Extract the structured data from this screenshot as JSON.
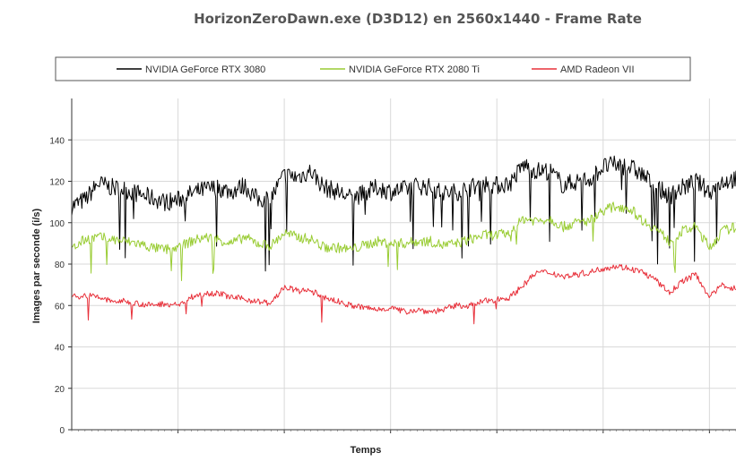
{
  "chart_data": {
    "type": "line",
    "title": "HorizonZeroDawn.exe (D3D12) en 2560x1440 - Frame Rate",
    "xlabel": "Temps",
    "ylabel": "Images par seconde (i/s)",
    "ylim": [
      0,
      160
    ],
    "yticks": [
      0,
      20,
      40,
      60,
      80,
      100,
      120,
      140
    ],
    "xlim": [
      0,
      100
    ],
    "grid": true,
    "legend_position": "top",
    "x": [
      0,
      2,
      4,
      6,
      8,
      10,
      12,
      14,
      16,
      18,
      20,
      22,
      24,
      26,
      28,
      30,
      32,
      34,
      36,
      38,
      40,
      42,
      44,
      46,
      48,
      50,
      52,
      54,
      56,
      58,
      60,
      62,
      64,
      66,
      68,
      70,
      72,
      74,
      76,
      78,
      80,
      82,
      84,
      86,
      88,
      90,
      92,
      94,
      96,
      98,
      100
    ],
    "series": [
      {
        "name": "NVIDIA GeForce RTX 3080",
        "color": "#000000",
        "values": [
          108,
          111,
          119,
          117,
          116,
          114,
          112,
          110,
          111,
          114,
          116,
          117,
          115,
          118,
          111,
          112,
          123,
          122,
          125,
          117,
          115,
          112,
          114,
          117,
          115,
          116,
          118,
          117,
          114,
          115,
          117,
          119,
          118,
          119,
          128,
          125,
          125,
          118,
          120,
          121,
          127,
          128,
          127,
          123,
          117,
          113,
          117,
          120,
          115,
          120,
          121
        ]
      },
      {
        "name": "NVIDIA GeForce RTX 2080 Ti",
        "color": "#99cc33",
        "values": [
          87,
          92,
          93,
          92,
          91,
          90,
          88,
          87,
          88,
          91,
          93,
          92,
          90,
          93,
          90,
          89,
          95,
          93,
          92,
          88,
          88,
          87,
          89,
          91,
          90,
          90,
          91,
          91,
          89,
          90,
          92,
          94,
          94,
          95,
          102,
          101,
          102,
          98,
          100,
          101,
          106,
          108,
          107,
          101,
          97,
          91,
          96,
          98,
          88,
          96,
          98
        ]
      },
      {
        "name": "AMD Radeon VII",
        "color": "#e8303a",
        "values": [
          64,
          65,
          64,
          62,
          62,
          61,
          60,
          61,
          60,
          64,
          66,
          66,
          64,
          63,
          62,
          61,
          69,
          67,
          67,
          64,
          62,
          60,
          59,
          58,
          59,
          57,
          58,
          57,
          58,
          60,
          60,
          62,
          63,
          64,
          70,
          76,
          76,
          74,
          75,
          76,
          78,
          79,
          78,
          76,
          72,
          66,
          72,
          75,
          64,
          70,
          68
        ]
      }
    ]
  }
}
